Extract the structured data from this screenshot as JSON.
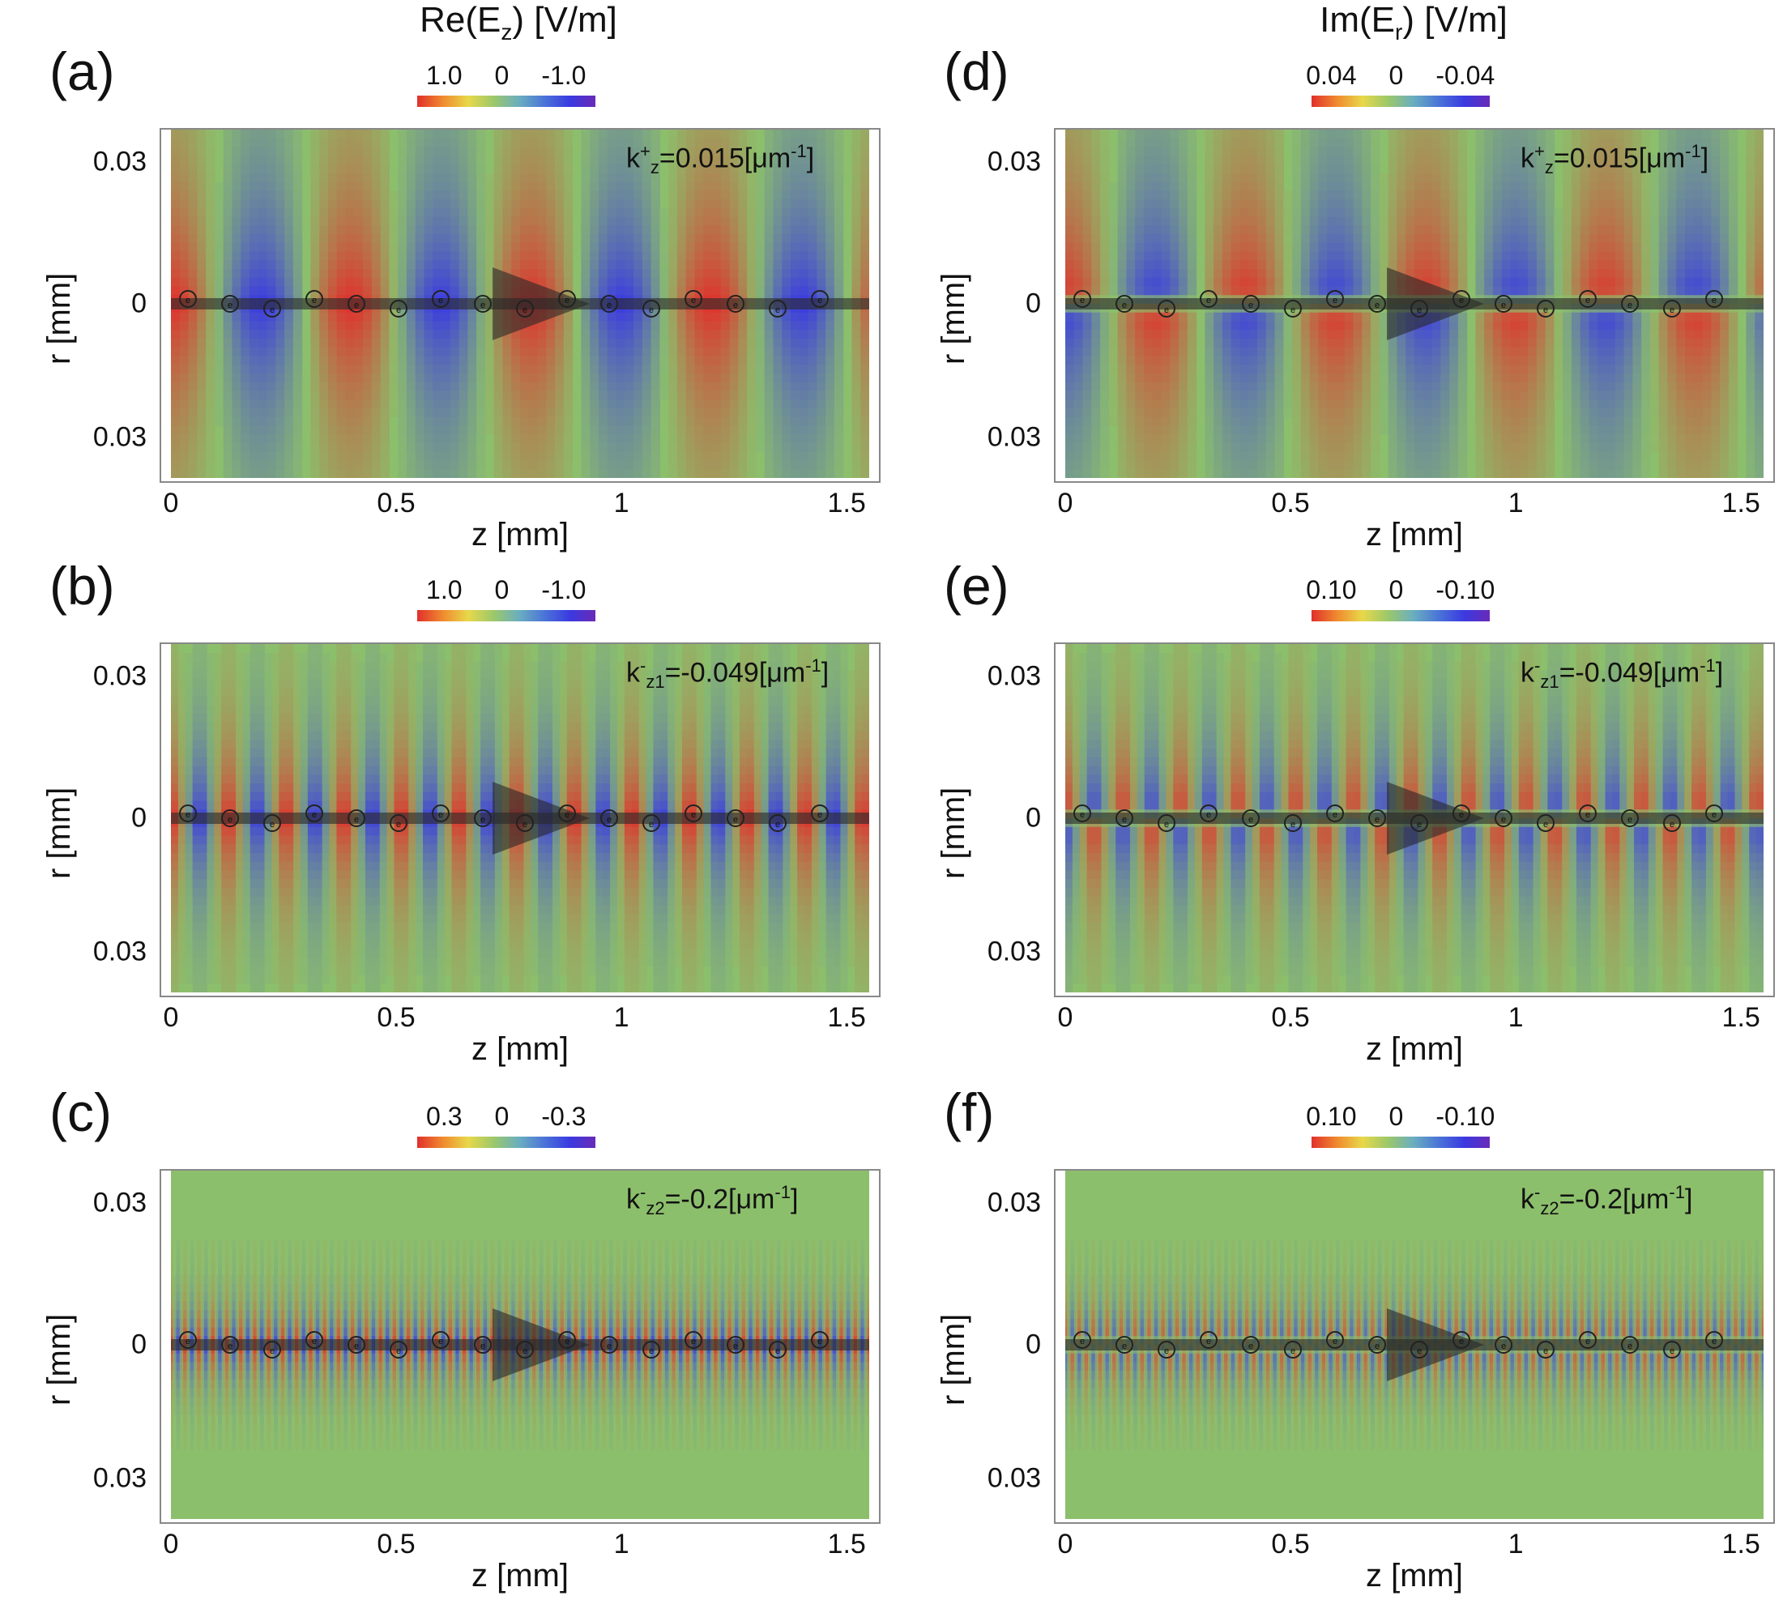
{
  "columns": [
    {
      "title": "Re(E",
      "title_sub": "z",
      "title_rest": ") [V/m]"
    },
    {
      "title": "Im(E",
      "title_sub": "r",
      "title_rest": ") [V/m]"
    }
  ],
  "axes": {
    "xlabel": "z [mm]",
    "ylabel": "r [mm]",
    "xticks": [
      "0",
      "0.5",
      "1",
      "1.5"
    ],
    "yticks": [
      "0.03",
      "0",
      "0.03"
    ]
  },
  "colors": {
    "positive": "#e0302c",
    "zero": "#8cbf6c",
    "negative": "#3a3ae0"
  },
  "chart_data": [
    {
      "type": "heatmap",
      "panel": "(a)",
      "quantity": "Re(Ez) [V/m]",
      "colorbar": [
        "1.0",
        "0",
        "-1.0"
      ],
      "k_text": "k",
      "k_sup": "+",
      "k_sub": "z",
      "k_val": "=0.015[μm",
      "k_exp": "-1",
      "k_close": "]",
      "wavelength_mm": 0.4,
      "xlim": [
        0,
        1.55
      ],
      "ylim": [
        -0.03,
        0.03
      ]
    },
    {
      "type": "heatmap",
      "panel": "(b)",
      "quantity": "Re(Ez) [V/m]",
      "colorbar": [
        "1.0",
        "0",
        "-1.0"
      ],
      "k_text": "k",
      "k_sup": "-",
      "k_sub": "z1",
      "k_val": "=-0.049[μm",
      "k_exp": "-1",
      "k_close": "]",
      "wavelength_mm": 0.128,
      "xlim": [
        0,
        1.55
      ],
      "ylim": [
        -0.03,
        0.03
      ]
    },
    {
      "type": "heatmap",
      "panel": "(c)",
      "quantity": "Re(Ez) [V/m]",
      "colorbar": [
        "0.3",
        "0",
        "-0.3"
      ],
      "k_text": "k",
      "k_sup": "-",
      "k_sub": "z2",
      "k_val": "=-0.2[μm",
      "k_exp": "-1",
      "k_close": "]",
      "wavelength_mm": 0.031,
      "xlim": [
        0,
        1.55
      ],
      "ylim": [
        -0.03,
        0.03
      ]
    },
    {
      "type": "heatmap",
      "panel": "(d)",
      "quantity": "Im(Er) [V/m]",
      "colorbar": [
        "0.04",
        "0",
        "-0.04"
      ],
      "k_text": "k",
      "k_sup": "+",
      "k_sub": "z",
      "k_val": "=0.015[μm",
      "k_exp": "-1",
      "k_close": "]",
      "wavelength_mm": 0.4,
      "xlim": [
        0,
        1.55
      ],
      "ylim": [
        -0.03,
        0.03
      ]
    },
    {
      "type": "heatmap",
      "panel": "(e)",
      "quantity": "Im(Er) [V/m]",
      "colorbar": [
        "0.10",
        "0",
        "-0.10"
      ],
      "k_text": "k",
      "k_sup": "-",
      "k_sub": "z1",
      "k_val": "=-0.049[μm",
      "k_exp": "-1",
      "k_close": "]",
      "wavelength_mm": 0.128,
      "xlim": [
        0,
        1.55
      ],
      "ylim": [
        -0.03,
        0.03
      ]
    },
    {
      "type": "heatmap",
      "panel": "(f)",
      "quantity": "Im(Er) [V/m]",
      "colorbar": [
        "0.10",
        "0",
        "-0.10"
      ],
      "k_text": "k",
      "k_sup": "-",
      "k_sub": "z2",
      "k_val": "=-0.2[μm",
      "k_exp": "-1",
      "k_close": "]",
      "wavelength_mm": 0.031,
      "xlim": [
        0,
        1.55
      ],
      "ylim": [
        -0.03,
        0.03
      ]
    }
  ],
  "electron_label": "e"
}
